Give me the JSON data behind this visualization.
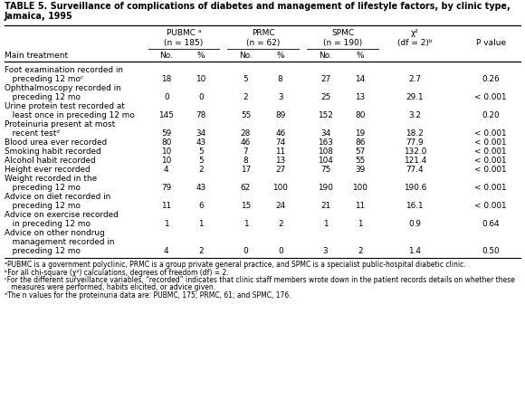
{
  "title_line1": "TABLE 5. Surveillance of complications of diabetes and management of lifestyle factors, by clinic type,",
  "title_line2": "Jamaica, 1995",
  "col_centers_norm": {
    "pubmc_no": 0.317,
    "pubmc_pct": 0.383,
    "prmc_no": 0.468,
    "prmc_pct": 0.534,
    "spmc_no": 0.62,
    "spmc_pct": 0.686,
    "chi2": 0.79,
    "pval": 0.935
  },
  "rows": [
    {
      "label": [
        "Foot examination recorded in",
        "   preceding 12 moᶜ"
      ],
      "values": [
        "18",
        "10",
        "5",
        "8",
        "27",
        "14",
        "2.7",
        "0.26"
      ]
    },
    {
      "label": [
        "Ophthalmoscopy recorded in",
        "   preceding 12 mo"
      ],
      "values": [
        "0",
        "0",
        "2",
        "3",
        "25",
        "13",
        "29.1",
        "< 0.001"
      ]
    },
    {
      "label": [
        "Urine protein test recorded at",
        "   least once in preceding 12 mo"
      ],
      "values": [
        "145",
        "78",
        "55",
        "89",
        "152",
        "80",
        "3.2",
        "0.20"
      ]
    },
    {
      "label": [
        "Proteinuria present at most",
        "   recent testᵈ"
      ],
      "values": [
        "59",
        "34",
        "28",
        "46",
        "34",
        "19",
        "18.2",
        "< 0.001"
      ]
    },
    {
      "label": [
        "Blood urea ever recorded"
      ],
      "values": [
        "80",
        "43",
        "46",
        "74",
        "163",
        "86",
        "77.9",
        "< 0.001"
      ]
    },
    {
      "label": [
        "Smoking habit recorded"
      ],
      "values": [
        "10",
        "5",
        "7",
        "11",
        "108",
        "57",
        "132.0",
        "< 0.001"
      ]
    },
    {
      "label": [
        "Alcohol habit recorded"
      ],
      "values": [
        "10",
        "5",
        "8",
        "13",
        "104",
        "55",
        "121.4",
        "< 0.001"
      ]
    },
    {
      "label": [
        "Height ever recorded"
      ],
      "values": [
        "4",
        "2",
        "17",
        "27",
        "75",
        "39",
        "77.4",
        "< 0.001"
      ]
    },
    {
      "label": [
        "Weight recorded in the",
        "   preceding 12 mo"
      ],
      "values": [
        "79",
        "43",
        "62",
        "100",
        "190",
        "100",
        "190.6",
        "< 0.001"
      ]
    },
    {
      "label": [
        "Advice on diet recorded in",
        "   preceding 12 mo"
      ],
      "values": [
        "11",
        "6",
        "15",
        "24",
        "21",
        "11",
        "16.1",
        "< 0.001"
      ]
    },
    {
      "label": [
        "Advice on exercise recorded",
        "   in preceding 12 mo"
      ],
      "values": [
        "1",
        "1",
        "1",
        "2",
        "1",
        "1",
        "0.9",
        "0.64"
      ]
    },
    {
      "label": [
        "Advice on other nondrug",
        "   management recorded in",
        "   preceding 12 mo"
      ],
      "values": [
        "4",
        "2",
        "0",
        "0",
        "3",
        "2",
        "1.4",
        "0.50"
      ]
    }
  ],
  "footnotes": [
    "ᵃPUBMC is a government polyclinic, PRMC is a group private general practice, and SPMC is a specialist public-hospital diabetic clinic.",
    "ᵇFor all chi-square (χ²) calculations, degrees of freedom (df) = 2.",
    "ᶜFor the different surveillance variables, “recorded” indicates that clinic staff members wrote down in the patient records details on whether these",
    "   measures were performed, habits elicited, or advice given.",
    "ᵈThe n values for the proteinuria data are: PUBMC, 175; PRMC, 61; and SPMC, 176."
  ],
  "fig_width": 5.8,
  "fig_height": 4.63,
  "dpi": 100
}
